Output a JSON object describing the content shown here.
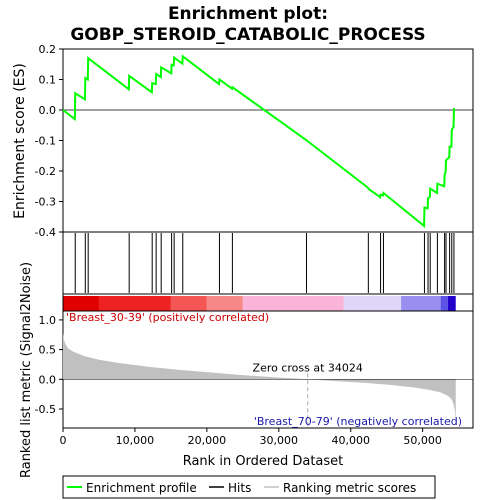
{
  "chart_data": {
    "type": "line",
    "title_line1": "Enrichment plot:",
    "title_line2": "GOBP_STEROID_CATABOLIC_PROCESS",
    "top_panel": {
      "ylabel": "Enrichment score (ES)",
      "ylim": [
        -0.4,
        0.2
      ],
      "yticks": [
        "0.2",
        "0.1",
        "0.0",
        "-0.1",
        "-0.2",
        "-0.3",
        "-0.4"
      ],
      "yticks_values": [
        0.2,
        0.1,
        0.0,
        -0.1,
        -0.2,
        -0.3,
        -0.4
      ],
      "line_color": "#00ff00",
      "es_curve": [
        [
          0,
          0.0
        ],
        [
          1650,
          -0.03
        ],
        [
          1700,
          0.055
        ],
        [
          3050,
          0.035
        ],
        [
          3100,
          0.105
        ],
        [
          3450,
          0.1
        ],
        [
          3500,
          0.17
        ],
        [
          9150,
          0.068
        ],
        [
          9200,
          0.112
        ],
        [
          12350,
          0.058
        ],
        [
          12400,
          0.088
        ],
        [
          12900,
          0.085
        ],
        [
          12950,
          0.118
        ],
        [
          13600,
          0.108
        ],
        [
          13650,
          0.14
        ],
        [
          15050,
          0.12
        ],
        [
          15100,
          0.148
        ],
        [
          15400,
          0.146
        ],
        [
          15450,
          0.172
        ],
        [
          16600,
          0.152
        ],
        [
          16650,
          0.176
        ],
        [
          21700,
          0.085
        ],
        [
          21750,
          0.1
        ],
        [
          23500,
          0.07
        ],
        [
          23550,
          0.075
        ],
        [
          33900,
          -0.1
        ],
        [
          42400,
          -0.255
        ],
        [
          42450,
          -0.258
        ],
        [
          44100,
          -0.286
        ],
        [
          44150,
          -0.278
        ],
        [
          44500,
          -0.28
        ],
        [
          44550,
          -0.272
        ],
        [
          50200,
          -0.38
        ],
        [
          50250,
          -0.32
        ],
        [
          50700,
          -0.322
        ],
        [
          50750,
          -0.29
        ],
        [
          51000,
          -0.285
        ],
        [
          51050,
          -0.258
        ],
        [
          52000,
          -0.272
        ],
        [
          52050,
          -0.242
        ],
        [
          53000,
          -0.25
        ],
        [
          53050,
          -0.215
        ],
        [
          53200,
          -0.2
        ],
        [
          53250,
          -0.165
        ],
        [
          53700,
          -0.155
        ],
        [
          53750,
          -0.12
        ],
        [
          54000,
          -0.12
        ],
        [
          54050,
          -0.065
        ],
        [
          54300,
          -0.055
        ],
        [
          54350,
          0.003
        ],
        [
          54500,
          0.003
        ]
      ]
    },
    "hits": [
      1700,
      3100,
      3500,
      9200,
      12400,
      12950,
      13650,
      15100,
      15450,
      16650,
      21750,
      23550,
      33850,
      42450,
      44150,
      44550,
      50250,
      50750,
      51050,
      52050,
      53050,
      53250,
      53750,
      54050,
      54350
    ],
    "heatmap_colors": [
      "#e00000",
      "#ee2222",
      "#f45555",
      "#f88888",
      "#f9b4d8",
      "#e0d6f7",
      "#9a8ef0",
      "#5b52e6",
      "#2200cc"
    ],
    "bottom_panel": {
      "ylabel": "Ranked list metric (Signal2Noise)",
      "xlabel": "Rank in Ordered Dataset",
      "ylim": [
        -0.82,
        1.15
      ],
      "yticks": [
        "1.0",
        "0.5",
        "0.0",
        "-0.5"
      ],
      "yticks_values": [
        1.0,
        0.5,
        0.0,
        -0.5
      ],
      "xlim": [
        0,
        57000
      ],
      "xticks": [
        "0",
        "10,000",
        "20,000",
        "30,000",
        "40,000",
        "50,000"
      ],
      "xticks_values": [
        0,
        10000,
        20000,
        30000,
        40000,
        50000
      ],
      "zero_cross_label": "Zero cross at 34024",
      "zero_cross": 34024,
      "pos_label": "'Breast_30-39' (positively correlated)",
      "neg_label": "'Breast_70-79' (negatively correlated)",
      "metric_profile": [
        [
          0,
          0.78
        ],
        [
          100,
          0.68
        ],
        [
          300,
          0.6
        ],
        [
          700,
          0.52
        ],
        [
          1500,
          0.46
        ],
        [
          3000,
          0.39
        ],
        [
          5000,
          0.33
        ],
        [
          8000,
          0.27
        ],
        [
          12000,
          0.21
        ],
        [
          16000,
          0.16
        ],
        [
          20000,
          0.12
        ],
        [
          25000,
          0.07
        ],
        [
          30000,
          0.03
        ],
        [
          34024,
          0.0
        ],
        [
          38000,
          -0.03
        ],
        [
          42000,
          -0.06
        ],
        [
          46000,
          -0.1
        ],
        [
          49000,
          -0.14
        ],
        [
          51000,
          -0.18
        ],
        [
          52500,
          -0.22
        ],
        [
          53500,
          -0.28
        ],
        [
          54000,
          -0.33
        ],
        [
          54300,
          -0.42
        ],
        [
          54500,
          -0.55
        ],
        [
          54600,
          -0.78
        ]
      ]
    },
    "legend": {
      "items": [
        {
          "label": "Enrichment profile",
          "color": "#00ff00"
        },
        {
          "label": "Hits",
          "color": "#000000"
        },
        {
          "label": "Ranking metric scores",
          "color": "#c0c0c0"
        }
      ]
    }
  }
}
